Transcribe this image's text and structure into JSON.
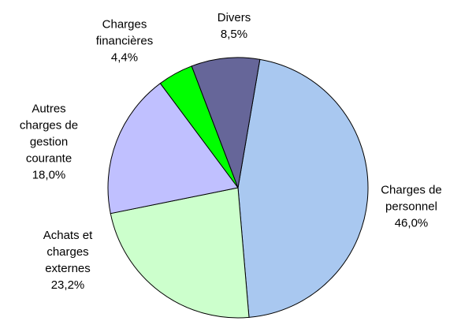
{
  "chart_data": {
    "type": "pie",
    "categories": [
      "Charges de personnel",
      "Achats et charges externes",
      "Autres charges de gestion courante",
      "Charges financières",
      "Divers"
    ],
    "values": [
      46.0,
      23.2,
      18.0,
      4.4,
      8.5
    ],
    "value_labels": [
      "46,0%",
      "23,2%",
      "18,0%",
      "4,4%",
      "8,5%"
    ],
    "colors": [
      "#a9c8f0",
      "#ccffcc",
      "#c0c0ff",
      "#00ff00",
      "#666699"
    ]
  }
}
